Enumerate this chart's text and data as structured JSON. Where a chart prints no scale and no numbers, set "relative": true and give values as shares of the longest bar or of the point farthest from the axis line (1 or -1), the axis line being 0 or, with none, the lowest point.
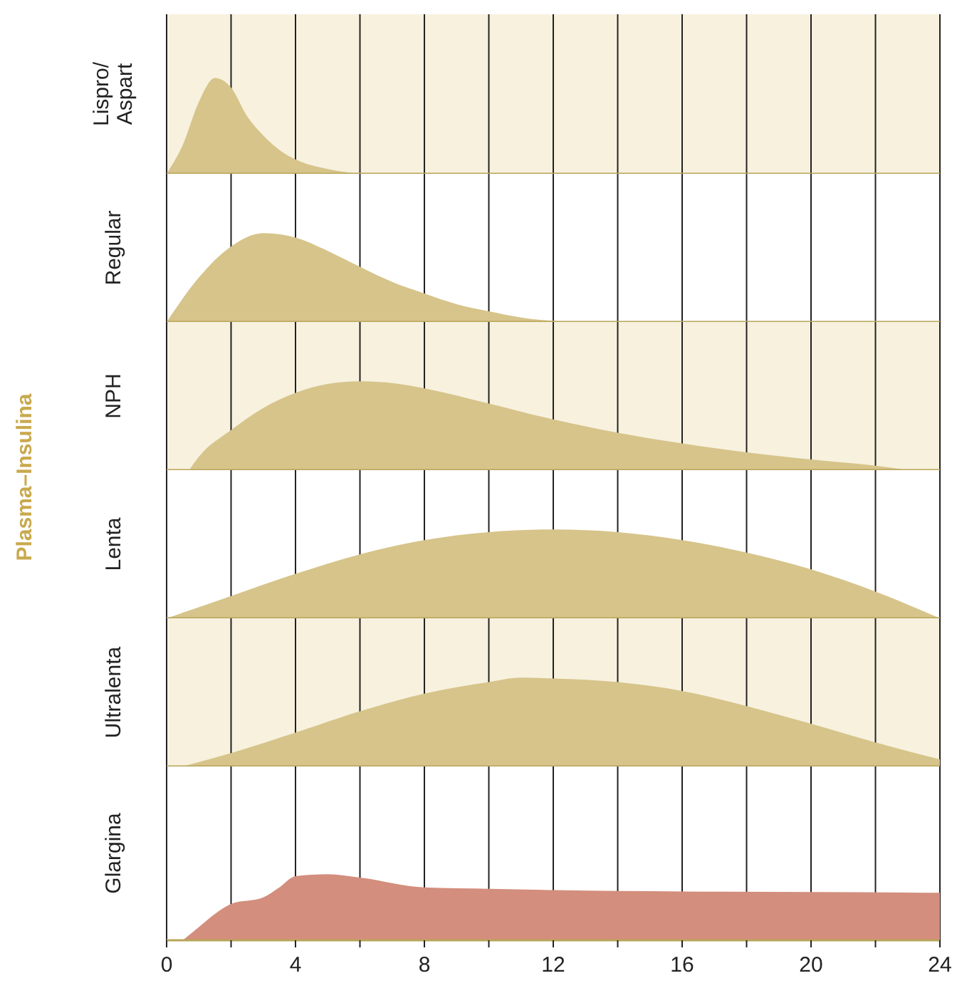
{
  "chart_data": [
    {
      "type": "area",
      "ylabel": "Lispro/ Aspart",
      "relative": true,
      "xlim": [
        0,
        24
      ],
      "grid": "x",
      "tick_labels": false,
      "annotations": [
        "Plasma–Insulina"
      ],
      "xticks": [
        0,
        {
          "value": 2,
          "label": null
        },
        4,
        {
          "value": 6,
          "label": null
        },
        8,
        {
          "value": 10,
          "label": null
        },
        12,
        {
          "value": 14,
          "label": null
        },
        16,
        {
          "value": 18,
          "label": null
        },
        20,
        {
          "value": 22,
          "label": null
        },
        24
      ],
      "series": [
        {
          "color": "#d6c48a",
          "x": [
            0,
            0.5,
            1,
            1.5,
            2,
            2.5,
            3,
            3.5,
            4,
            5,
            6
          ],
          "values": [
            0,
            0.3,
            0.75,
            1,
            0.9,
            0.6,
            0.4,
            0.25,
            0.15,
            0.05,
            0
          ]
        }
      ]
    },
    {
      "type": "area",
      "ylabel": "Regular",
      "relative": true,
      "xlim": [
        0,
        24
      ],
      "grid": "x",
      "tick_labels": false,
      "xticks": [
        0,
        {
          "value": 2,
          "label": null
        },
        4,
        {
          "value": 6,
          "label": null
        },
        8,
        {
          "value": 10,
          "label": null
        },
        12,
        {
          "value": 14,
          "label": null
        },
        16,
        {
          "value": 18,
          "label": null
        },
        20,
        {
          "value": 22,
          "label": null
        },
        24
      ],
      "series": [
        {
          "color": "#d6c48a",
          "x": [
            0,
            1,
            2,
            3,
            4,
            5,
            6,
            7,
            8,
            9,
            10,
            11,
            12.5
          ],
          "values": [
            0,
            0.5,
            0.85,
            1,
            0.95,
            0.8,
            0.62,
            0.45,
            0.32,
            0.2,
            0.12,
            0.05,
            0
          ]
        }
      ]
    },
    {
      "type": "area",
      "ylabel": "NPH",
      "relative": true,
      "xlim": [
        0,
        24
      ],
      "grid": "x",
      "tick_labels": false,
      "xticks": [
        0,
        {
          "value": 2,
          "label": null
        },
        4,
        {
          "value": 6,
          "label": null
        },
        8,
        {
          "value": 10,
          "label": null
        },
        12,
        {
          "value": 14,
          "label": null
        },
        16,
        {
          "value": 18,
          "label": null
        },
        20,
        {
          "value": 22,
          "label": null
        },
        24
      ],
      "series": [
        {
          "color": "#d6c48a",
          "x": [
            0.7,
            1,
            2,
            3,
            4,
            5,
            6,
            7,
            8,
            10,
            12,
            14,
            16,
            18,
            20,
            22,
            23
          ],
          "values": [
            0,
            0.15,
            0.45,
            0.7,
            0.87,
            0.97,
            1,
            0.98,
            0.92,
            0.75,
            0.57,
            0.42,
            0.3,
            0.2,
            0.12,
            0.05,
            0
          ]
        }
      ]
    },
    {
      "type": "area",
      "ylabel": "Lenta",
      "relative": true,
      "xlim": [
        0,
        24
      ],
      "grid": "x",
      "tick_labels": false,
      "xticks": [
        0,
        {
          "value": 2,
          "label": null
        },
        4,
        {
          "value": 6,
          "label": null
        },
        8,
        {
          "value": 10,
          "label": null
        },
        12,
        {
          "value": 14,
          "label": null
        },
        16,
        {
          "value": 18,
          "label": null
        },
        20,
        {
          "value": 22,
          "label": null
        },
        24
      ],
      "series": [
        {
          "color": "#d6c48a",
          "x": [
            0,
            2,
            4,
            6,
            8,
            10,
            12,
            14,
            16,
            18,
            20,
            22,
            24
          ],
          "values": [
            0,
            0.25,
            0.5,
            0.72,
            0.88,
            0.97,
            1,
            0.97,
            0.88,
            0.74,
            0.55,
            0.3,
            0
          ]
        }
      ]
    },
    {
      "type": "area",
      "ylabel": "Ultralenta",
      "relative": true,
      "xlim": [
        0,
        24
      ],
      "grid": "x",
      "tick_labels": false,
      "xticks": [
        0,
        {
          "value": 2,
          "label": null
        },
        4,
        {
          "value": 6,
          "label": null
        },
        8,
        {
          "value": 10,
          "label": null
        },
        12,
        {
          "value": 14,
          "label": null
        },
        16,
        {
          "value": 18,
          "label": null
        },
        20,
        {
          "value": 22,
          "label": null
        },
        24
      ],
      "series": [
        {
          "color": "#d6c48a",
          "x": [
            0.5,
            2,
            4,
            6,
            8,
            10,
            11,
            12,
            14,
            16,
            18,
            20,
            22,
            24
          ],
          "values": [
            0,
            0.15,
            0.38,
            0.62,
            0.82,
            0.95,
            1,
            0.99,
            0.95,
            0.85,
            0.68,
            0.48,
            0.27,
            0.08
          ]
        }
      ]
    },
    {
      "type": "area",
      "ylabel": "Glargina",
      "relative": true,
      "xlim": [
        0,
        24
      ],
      "grid": "x",
      "tick_labels": "x",
      "xticks": [
        0,
        {
          "value": 2,
          "label": null
        },
        4,
        {
          "value": 6,
          "label": null
        },
        8,
        {
          "value": 10,
          "label": null
        },
        12,
        {
          "value": 14,
          "label": null
        },
        16,
        {
          "value": 18,
          "label": null
        },
        20,
        {
          "value": 22,
          "label": null
        },
        24
      ],
      "series": [
        {
          "color": "#d38e7d",
          "x": [
            0.5,
            1,
            1.5,
            2,
            3,
            3.5,
            4,
            5,
            6,
            8,
            10,
            12,
            16,
            20,
            24
          ],
          "values": [
            0,
            0.2,
            0.4,
            0.55,
            0.65,
            0.8,
            0.97,
            1,
            0.95,
            0.8,
            0.78,
            0.76,
            0.74,
            0.73,
            0.72
          ]
        }
      ]
    }
  ]
}
